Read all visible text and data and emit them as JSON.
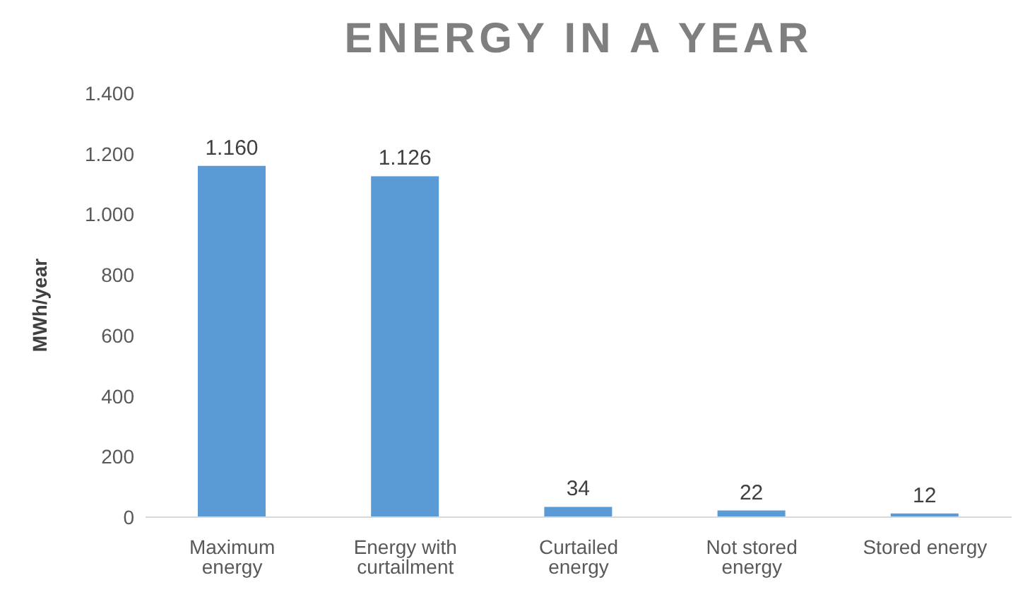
{
  "chart_data": {
    "type": "bar",
    "title": "ENERGY IN A YEAR",
    "ylabel": "MWh/year",
    "categories": [
      "Maximum energy",
      "Energy with curtailment",
      "Curtailed energy",
      "Not stored energy",
      "Stored energy"
    ],
    "values": [
      1160,
      1126,
      34,
      22,
      12
    ],
    "color": "#5b9bd5",
    "value_labels": [
      "1.160",
      "1.126",
      "34",
      "22",
      "12"
    ],
    "ylim": [
      0,
      1400
    ],
    "yticks": [
      {
        "value": 0,
        "label": "0"
      },
      {
        "value": 200,
        "label": "200"
      },
      {
        "value": 400,
        "label": "400"
      },
      {
        "value": 600,
        "label": "600"
      },
      {
        "value": 800,
        "label": "800"
      },
      {
        "value": 1000,
        "label": "1.000"
      },
      {
        "value": 1200,
        "label": "1.200"
      },
      {
        "value": 1400,
        "label": "1.400"
      }
    ],
    "grid": false,
    "legend": false
  }
}
